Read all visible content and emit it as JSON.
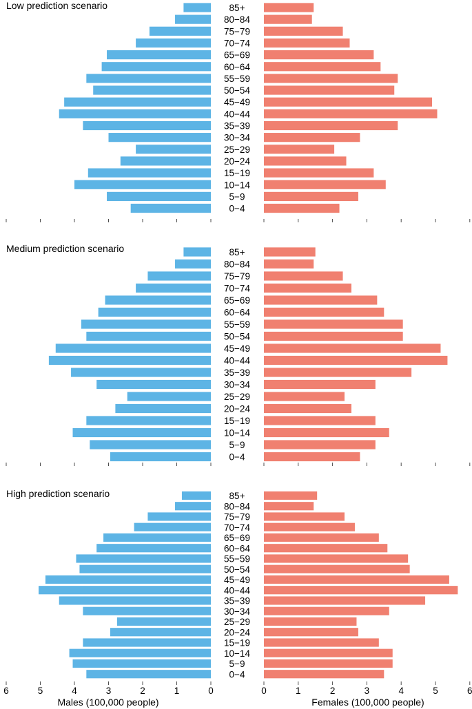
{
  "chart_data": [
    {
      "type": "bar",
      "orientation": "horizontal-population-pyramid",
      "title": "Low prediction scenario",
      "categories": [
        "85+",
        "80−84",
        "75−79",
        "70−74",
        "65−69",
        "60−64",
        "55−59",
        "50−54",
        "45−49",
        "40−44",
        "35−39",
        "30−34",
        "25−29",
        "20−24",
        "15−19",
        "10−14",
        "5−9",
        "0−4"
      ],
      "series": [
        {
          "name": "Males",
          "color": "#5DB4E5",
          "values": [
            0.8,
            1.05,
            1.8,
            2.2,
            3.05,
            3.2,
            3.65,
            3.45,
            4.3,
            4.45,
            3.75,
            3.0,
            2.2,
            2.65,
            3.6,
            4.0,
            3.05,
            2.35
          ]
        },
        {
          "name": "Females",
          "color": "#F08070",
          "values": [
            1.45,
            1.4,
            2.3,
            2.5,
            3.2,
            3.4,
            3.9,
            3.8,
            4.9,
            5.05,
            3.9,
            2.8,
            2.05,
            2.4,
            3.2,
            3.55,
            2.75,
            2.2
          ]
        }
      ]
    },
    {
      "type": "bar",
      "orientation": "horizontal-population-pyramid",
      "title": "Medium prediction scenario",
      "categories": [
        "85+",
        "80−84",
        "75−79",
        "70−74",
        "65−69",
        "60−64",
        "55−59",
        "50−54",
        "45−49",
        "40−44",
        "35−39",
        "30−34",
        "25−29",
        "20−24",
        "15−19",
        "10−14",
        "5−9",
        "0−4"
      ],
      "series": [
        {
          "name": "Males",
          "color": "#5DB4E5",
          "values": [
            0.8,
            1.05,
            1.85,
            2.2,
            3.1,
            3.3,
            3.8,
            3.65,
            4.55,
            4.75,
            4.1,
            3.35,
            2.45,
            2.8,
            3.65,
            4.05,
            3.55,
            2.95
          ]
        },
        {
          "name": "Females",
          "color": "#F08070",
          "values": [
            1.5,
            1.45,
            2.3,
            2.55,
            3.3,
            3.5,
            4.05,
            4.05,
            5.15,
            5.35,
            4.3,
            3.25,
            2.35,
            2.55,
            3.25,
            3.65,
            3.25,
            2.8
          ]
        }
      ]
    },
    {
      "type": "bar",
      "orientation": "horizontal-population-pyramid",
      "title": "High prediction scenario",
      "categories": [
        "85+",
        "80−84",
        "75−79",
        "70−74",
        "65−69",
        "60−64",
        "55−59",
        "50−54",
        "45−49",
        "40−44",
        "35−39",
        "30−34",
        "25−29",
        "20−24",
        "15−19",
        "10−14",
        "5−9",
        "0−4"
      ],
      "series": [
        {
          "name": "Males",
          "color": "#5DB4E5",
          "values": [
            0.85,
            1.05,
            1.85,
            2.25,
            3.15,
            3.35,
            3.95,
            3.85,
            4.85,
            5.05,
            4.45,
            3.75,
            2.75,
            2.95,
            3.75,
            4.15,
            4.05,
            3.65
          ]
        },
        {
          "name": "Females",
          "color": "#F08070",
          "values": [
            1.55,
            1.45,
            2.35,
            2.65,
            3.35,
            3.6,
            4.2,
            4.25,
            5.4,
            5.65,
            4.7,
            3.65,
            2.7,
            2.75,
            3.35,
            3.75,
            3.75,
            3.5
          ]
        }
      ]
    }
  ],
  "axes": {
    "males": {
      "label": "Males (100,000 people)",
      "ticks": [
        "6",
        "5",
        "4",
        "3",
        "2",
        "1",
        "0"
      ],
      "range": [
        0,
        6
      ]
    },
    "females": {
      "label": "Females (100,000 people)",
      "ticks": [
        "0",
        "1",
        "2",
        "3",
        "4",
        "5",
        "6"
      ],
      "range": [
        0,
        6
      ]
    }
  }
}
